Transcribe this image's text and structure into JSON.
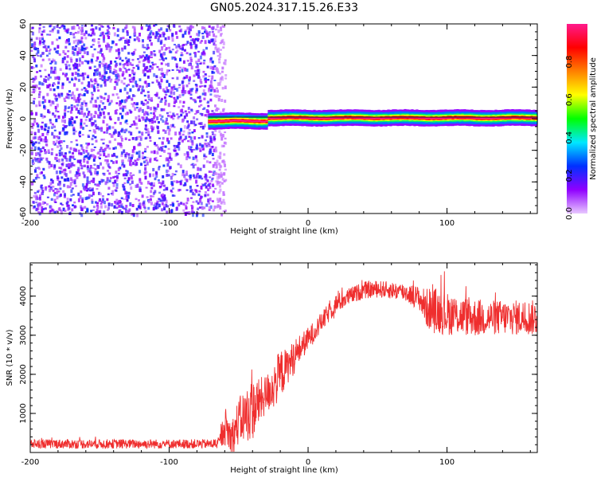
{
  "figure": {
    "title": "GN05.2024.317.15.26.E33"
  },
  "chart_data": [
    {
      "type": "heatmap",
      "title": "",
      "xlabel": "Height of straight line (km)",
      "ylabel": "Frequency (Hz)",
      "xlim": [
        -200,
        165
      ],
      "ylim": [
        -60,
        60
      ],
      "x_ticks": [
        -200,
        -100,
        0,
        100
      ],
      "y_ticks": [
        -60,
        -40,
        -20,
        0,
        20,
        40,
        60
      ],
      "colorbar": {
        "label": "Normalized spectral amplitude",
        "range": [
          0,
          1
        ],
        "ticks": [
          0.0,
          0.2,
          0.4,
          0.6,
          0.8
        ],
        "colormap": [
          "#e8c8ff",
          "#9000ff",
          "#0030ff",
          "#00e8ff",
          "#00ff00",
          "#ffff00",
          "#ff8000",
          "#ff0000",
          "#ff1a8c"
        ]
      },
      "regions": [
        {
          "x_range": [
            -200,
            -68
          ],
          "f_range": [
            -60,
            60
          ],
          "amplitude": [
            0.05,
            0.25
          ],
          "description_value": "noise"
        },
        {
          "x_range": [
            -72,
            165
          ],
          "f_center": 0,
          "f_halfwidth": 2,
          "amplitude": [
            0.8,
            1.0
          ]
        }
      ],
      "grid": false
    },
    {
      "type": "line",
      "title": "",
      "xlabel": "Height of straight line (km)",
      "ylabel": "SNR (10 * v/v)",
      "xlim": [
        -200,
        165
      ],
      "ylim": [
        0,
        4850
      ],
      "x_ticks": [
        -200,
        -100,
        0,
        100
      ],
      "y_ticks": [
        1000,
        2000,
        3000,
        4000
      ],
      "color": "#ef2e2e",
      "series": [
        {
          "x": [
            -200,
            -150,
            -100,
            -70,
            -64,
            -60,
            -55,
            -50,
            -45,
            -40,
            -35,
            -30,
            -25,
            -20,
            -15,
            -10,
            -5,
            0,
            10,
            20,
            30,
            40,
            50,
            60,
            70,
            80,
            85,
            90,
            100,
            110,
            120,
            130,
            140,
            150,
            165
          ],
          "y": [
            220,
            220,
            220,
            220,
            240,
            700,
            350,
            800,
            950,
            1100,
            1300,
            1500,
            1700,
            2000,
            2200,
            2450,
            2700,
            2900,
            3350,
            3800,
            4000,
            4150,
            4180,
            4150,
            4100,
            3950,
            3700,
            3650,
            3550,
            3500,
            3450,
            3450,
            3450,
            3450,
            3450
          ],
          "spread": [
            120,
            120,
            120,
            120,
            150,
            500,
            500,
            600,
            700,
            800,
            600,
            500,
            600,
            650,
            450,
            450,
            350,
            300,
            250,
            250,
            220,
            220,
            220,
            220,
            250,
            300,
            500,
            600,
            550,
            500,
            500,
            450,
            450,
            450,
            450
          ]
        }
      ],
      "grid": false
    }
  ]
}
